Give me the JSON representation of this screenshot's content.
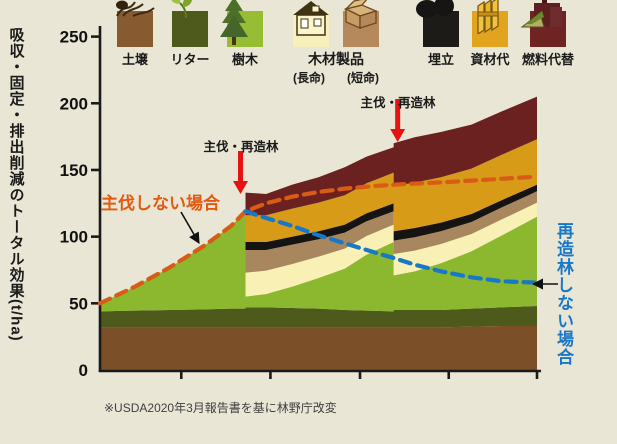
{
  "page": {
    "bg": "#e9e6d5"
  },
  "y_axis_title": "吸収・固定・排出削減のトータル効果(t/ha)",
  "footnote": "※USDA2020年3月報告書を基に林野庁改変",
  "legend": {
    "group_label": "木材製品",
    "items": [
      {
        "id": "soil",
        "label": "土壌",
        "color": "#875a30",
        "icon": "roots-icon"
      },
      {
        "id": "litter",
        "label": "リター",
        "color": "#4e5a1b",
        "icon": "seedling-icon"
      },
      {
        "id": "trees",
        "label": "樹木",
        "color": "#97bd35",
        "icon": "conifer-icon"
      },
      {
        "id": "wood-long",
        "label": "木材製品",
        "sub": "(長命)",
        "color": "#f7f0bb",
        "icon": "house-icon"
      },
      {
        "id": "wood-short",
        "label": "木材製品",
        "sub": "(短命)",
        "color": "#b5895c",
        "icon": "box-icon"
      },
      {
        "id": "landfill",
        "label": "埋立",
        "color": "#1d1b18",
        "icon": "bags-icon"
      },
      {
        "id": "material",
        "label": "資材代",
        "color": "#e2a41f",
        "icon": "lumber-icon"
      },
      {
        "id": "fuel",
        "label": "燃料代替",
        "color": "#6f2323",
        "icon": "factory-icon"
      }
    ]
  },
  "annotations": {
    "harvest_label_1": "主伐・再造林",
    "harvest_label_2": "主伐・再造林",
    "no_harvest_label": "主伐しない場合",
    "no_replant_label": "再造林しない場合",
    "no_harvest_color": "#e2590f",
    "no_replant_color": "#1878c8",
    "harvest_arrow_color": "#e51211"
  },
  "chart_data": {
    "type": "area",
    "stacked": true,
    "title": "",
    "ylabel": "吸収・固定・排出削減のトータル効果(t/ha)",
    "ylim": [
      0,
      250
    ],
    "yticks": [
      0,
      50,
      100,
      150,
      200,
      250
    ],
    "xticks_t": [
      18.6,
      39.0,
      59.5,
      79.8,
      100
    ],
    "x_axis_tick_labels": [],
    "t": [
      0,
      8,
      16,
      24,
      30,
      33.3,
      33.3,
      38,
      44,
      50,
      56,
      61,
      67.2,
      67.2,
      72,
      78,
      85,
      92,
      100
    ],
    "layers": [
      {
        "key": "soil",
        "name": "土壌",
        "color": "#7b4f27",
        "thickness": [
          32,
          32,
          32,
          32,
          32,
          32,
          32,
          32,
          32,
          32,
          32,
          32,
          32,
          32,
          32,
          32,
          32.5,
          33,
          33
        ]
      },
      {
        "key": "litter",
        "name": "リター",
        "color": "#4e5a1b",
        "thickness": [
          12,
          12.5,
          13,
          13.5,
          14,
          14,
          15,
          15,
          14.5,
          14,
          13,
          12.5,
          12,
          13,
          13,
          13,
          13.5,
          14,
          15
        ]
      },
      {
        "key": "trees",
        "name": "樹木",
        "color": "#8cb82f",
        "thickness": [
          6,
          18,
          32,
          48,
          62,
          73,
          8,
          10,
          16,
          23,
          31,
          42,
          52,
          26,
          29,
          35,
          43,
          54,
          67
        ]
      },
      {
        "key": "wood_long",
        "name": "木材製品(長命)",
        "color": "#f8f0b4",
        "thickness": [
          0,
          0,
          0,
          0,
          0,
          0,
          18,
          17.5,
          17,
          16,
          15,
          14,
          13,
          16,
          15.5,
          14.5,
          13,
          12,
          10.5
        ]
      },
      {
        "key": "wood_short",
        "name": "木材製品(短命)",
        "color": "#a8875f",
        "thickness": [
          0,
          0,
          0,
          0,
          0,
          0,
          17,
          15.5,
          14.5,
          13,
          12,
          11,
          10,
          10,
          10,
          9.5,
          9,
          9,
          8.5
        ]
      },
      {
        "key": "landfill",
        "name": "埋立",
        "color": "#161412",
        "thickness": [
          0,
          0,
          0,
          0,
          0,
          0,
          6,
          6,
          6,
          6,
          6,
          6,
          6,
          7,
          7,
          6.5,
          6,
          5.5,
          5
        ]
      },
      {
        "key": "material",
        "name": "資材代",
        "color": "#d89b17",
        "thickness": [
          0,
          0,
          0,
          0,
          0,
          0,
          20,
          20,
          21,
          21.5,
          22,
          22.5,
          23,
          34,
          34,
          34,
          34,
          34,
          34
        ]
      },
      {
        "key": "fuel",
        "name": "燃料代替",
        "color": "#6b2120",
        "thickness": [
          0,
          0,
          0,
          0,
          0,
          0,
          17,
          16,
          18,
          19,
          21,
          20,
          19,
          32,
          34,
          34,
          33,
          32.5,
          32
        ]
      }
    ],
    "lines": [
      {
        "key": "no_harvest",
        "name": "主伐しない場合",
        "color": "#d85c15",
        "t": [
          0,
          8,
          16,
          24,
          30,
          33.3,
          38,
          44,
          50,
          56,
          63,
          70,
          80,
          90,
          100
        ],
        "v": [
          50,
          62.5,
          77,
          93.5,
          108,
          119,
          125,
          130,
          133.5,
          136,
          138,
          139.5,
          141,
          143,
          145
        ]
      },
      {
        "key": "no_replant",
        "name": "再造林しない場合",
        "color": "#1878c8",
        "t": [
          33.3,
          38,
          44,
          50,
          56,
          63,
          67.2,
          72,
          78,
          85,
          92,
          100
        ],
        "v": [
          119,
          114,
          108,
          101,
          95,
          88,
          84,
          79,
          74,
          69.5,
          66.5,
          65.5
        ]
      }
    ],
    "harvests": [
      {
        "t": 33.3,
        "dx": -5,
        "label": "主伐・再造林"
      },
      {
        "t": 67.2,
        "dx": 4,
        "label": "主伐・再造林"
      }
    ]
  }
}
